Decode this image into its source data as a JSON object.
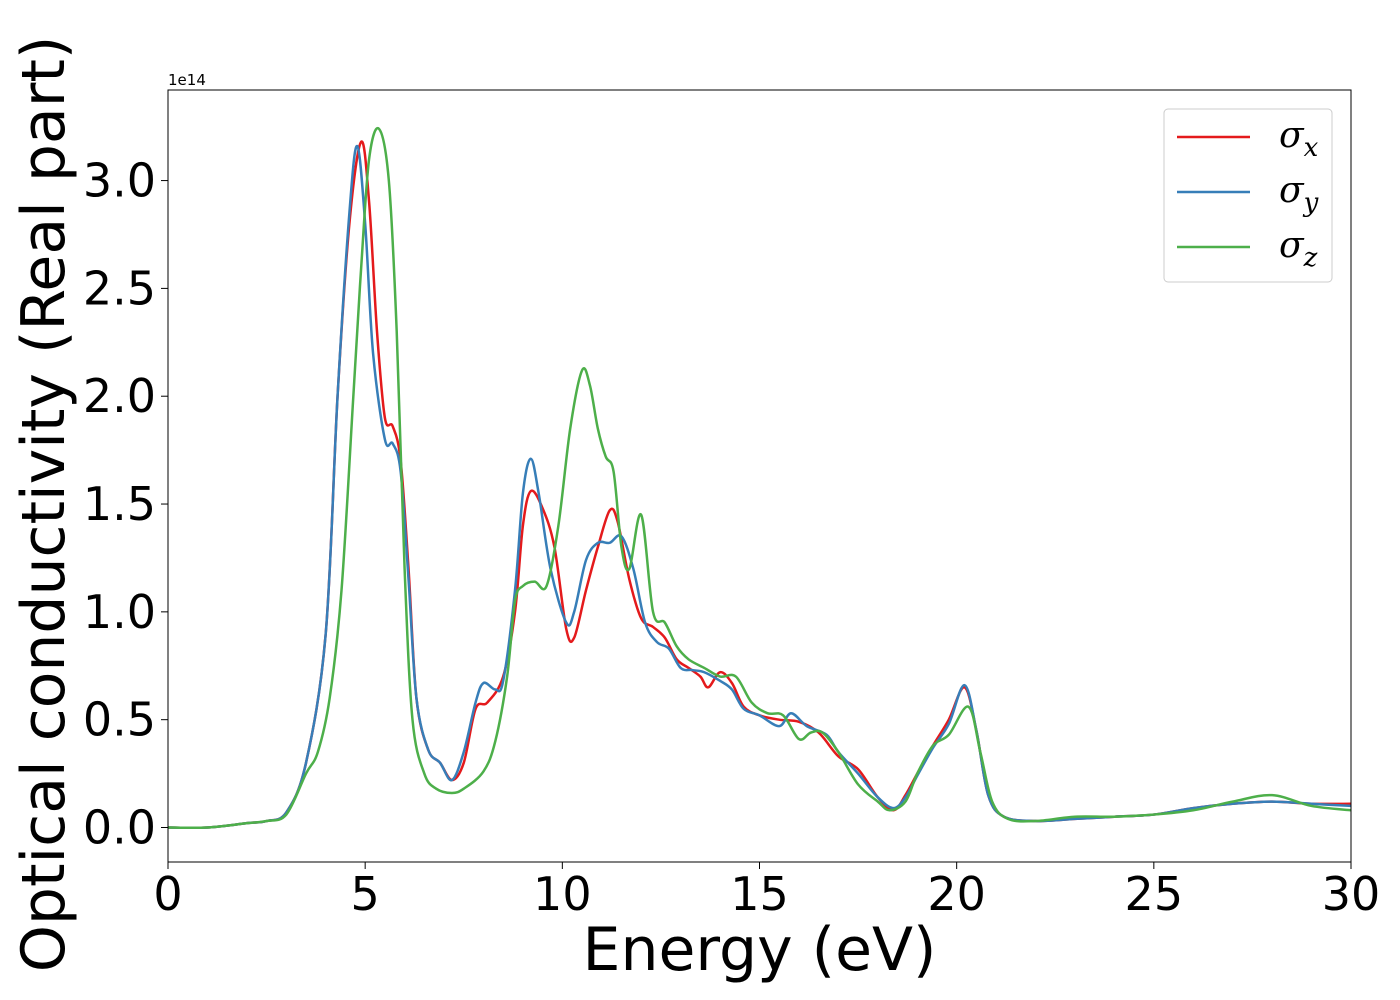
{
  "chart_data": {
    "type": "line",
    "title": "",
    "xlabel": "Energy (eV)",
    "ylabel": "Optical conductivity (Real part)",
    "y_offset_label": "1e14",
    "xlim": [
      0,
      30
    ],
    "ylim": [
      -0.16,
      3.42
    ],
    "x_ticks": [
      0,
      5,
      10,
      15,
      20,
      25,
      30
    ],
    "x_tick_labels": [
      "0",
      "5",
      "10",
      "15",
      "20",
      "25",
      "30"
    ],
    "y_ticks": [
      0.0,
      0.5,
      1.0,
      1.5,
      2.0,
      2.5,
      3.0
    ],
    "y_tick_labels": [
      "0.0",
      "0.5",
      "1.0",
      "1.5",
      "2.0",
      "2.5",
      "3.0"
    ],
    "grid": false,
    "legend_position": "top-right",
    "series": [
      {
        "name": "σx",
        "legend_symbol": "σ",
        "legend_subscript": "x",
        "color": "#e41a1c",
        "points": [
          [
            0,
            0
          ],
          [
            1,
            0
          ],
          [
            2,
            0.02
          ],
          [
            2.5,
            0.03
          ],
          [
            3,
            0.07
          ],
          [
            3.5,
            0.3
          ],
          [
            4,
            0.9
          ],
          [
            4.3,
            2.0
          ],
          [
            4.6,
            2.8
          ],
          [
            4.9,
            3.18
          ],
          [
            5.1,
            2.9
          ],
          [
            5.3,
            2.3
          ],
          [
            5.5,
            1.9
          ],
          [
            5.7,
            1.86
          ],
          [
            5.9,
            1.7
          ],
          [
            6.1,
            1.2
          ],
          [
            6.3,
            0.6
          ],
          [
            6.6,
            0.36
          ],
          [
            6.9,
            0.3
          ],
          [
            7.2,
            0.22
          ],
          [
            7.5,
            0.3
          ],
          [
            7.8,
            0.55
          ],
          [
            8.1,
            0.58
          ],
          [
            8.5,
            0.7
          ],
          [
            8.8,
            1.0
          ],
          [
            9.0,
            1.4
          ],
          [
            9.2,
            1.56
          ],
          [
            9.5,
            1.48
          ],
          [
            9.8,
            1.3
          ],
          [
            10.1,
            0.92
          ],
          [
            10.3,
            0.88
          ],
          [
            10.6,
            1.1
          ],
          [
            10.9,
            1.3
          ],
          [
            11.2,
            1.47
          ],
          [
            11.4,
            1.42
          ],
          [
            11.7,
            1.15
          ],
          [
            12.0,
            0.97
          ],
          [
            12.3,
            0.93
          ],
          [
            12.6,
            0.88
          ],
          [
            12.9,
            0.78
          ],
          [
            13.2,
            0.74
          ],
          [
            13.5,
            0.7
          ],
          [
            13.7,
            0.65
          ],
          [
            14.0,
            0.72
          ],
          [
            14.3,
            0.67
          ],
          [
            14.6,
            0.56
          ],
          [
            15.0,
            0.52
          ],
          [
            15.5,
            0.5
          ],
          [
            16.0,
            0.49
          ],
          [
            16.5,
            0.44
          ],
          [
            17.0,
            0.33
          ],
          [
            17.5,
            0.27
          ],
          [
            18.0,
            0.14
          ],
          [
            18.4,
            0.08
          ],
          [
            18.7,
            0.15
          ],
          [
            19.0,
            0.25
          ],
          [
            19.4,
            0.38
          ],
          [
            19.8,
            0.5
          ],
          [
            20.2,
            0.65
          ],
          [
            20.5,
            0.45
          ],
          [
            20.8,
            0.15
          ],
          [
            21.2,
            0.05
          ],
          [
            22,
            0.03
          ],
          [
            23,
            0.04
          ],
          [
            24,
            0.05
          ],
          [
            25,
            0.06
          ],
          [
            26,
            0.09
          ],
          [
            27,
            0.11
          ],
          [
            28,
            0.12
          ],
          [
            29,
            0.11
          ],
          [
            30,
            0.11
          ]
        ]
      },
      {
        "name": "σy",
        "legend_symbol": "σ",
        "legend_subscript": "y",
        "color": "#377eb8",
        "points": [
          [
            0,
            0
          ],
          [
            1,
            0
          ],
          [
            2,
            0.02
          ],
          [
            2.5,
            0.03
          ],
          [
            3,
            0.07
          ],
          [
            3.5,
            0.3
          ],
          [
            4,
            0.9
          ],
          [
            4.3,
            2.0
          ],
          [
            4.6,
            2.85
          ],
          [
            4.8,
            3.16
          ],
          [
            5.0,
            2.8
          ],
          [
            5.2,
            2.2
          ],
          [
            5.5,
            1.8
          ],
          [
            5.7,
            1.78
          ],
          [
            5.9,
            1.65
          ],
          [
            6.1,
            1.15
          ],
          [
            6.3,
            0.6
          ],
          [
            6.6,
            0.36
          ],
          [
            6.9,
            0.3
          ],
          [
            7.2,
            0.22
          ],
          [
            7.5,
            0.35
          ],
          [
            7.8,
            0.58
          ],
          [
            8.0,
            0.67
          ],
          [
            8.3,
            0.64
          ],
          [
            8.5,
            0.68
          ],
          [
            8.8,
            1.1
          ],
          [
            9.0,
            1.55
          ],
          [
            9.2,
            1.71
          ],
          [
            9.4,
            1.55
          ],
          [
            9.7,
            1.2
          ],
          [
            10.1,
            0.95
          ],
          [
            10.3,
            1.0
          ],
          [
            10.6,
            1.24
          ],
          [
            10.9,
            1.32
          ],
          [
            11.2,
            1.32
          ],
          [
            11.5,
            1.35
          ],
          [
            11.8,
            1.2
          ],
          [
            12.1,
            0.95
          ],
          [
            12.4,
            0.86
          ],
          [
            12.7,
            0.83
          ],
          [
            13.0,
            0.74
          ],
          [
            13.3,
            0.73
          ],
          [
            13.6,
            0.72
          ],
          [
            14.0,
            0.68
          ],
          [
            14.3,
            0.64
          ],
          [
            14.6,
            0.55
          ],
          [
            15.0,
            0.52
          ],
          [
            15.5,
            0.47
          ],
          [
            15.8,
            0.53
          ],
          [
            16.2,
            0.47
          ],
          [
            16.7,
            0.43
          ],
          [
            17.0,
            0.35
          ],
          [
            17.5,
            0.25
          ],
          [
            18.0,
            0.14
          ],
          [
            18.4,
            0.09
          ],
          [
            18.7,
            0.14
          ],
          [
            19.0,
            0.24
          ],
          [
            19.4,
            0.37
          ],
          [
            19.8,
            0.48
          ],
          [
            20.2,
            0.66
          ],
          [
            20.5,
            0.45
          ],
          [
            20.8,
            0.15
          ],
          [
            21.2,
            0.05
          ],
          [
            22,
            0.03
          ],
          [
            23,
            0.04
          ],
          [
            24,
            0.05
          ],
          [
            25,
            0.06
          ],
          [
            26,
            0.09
          ],
          [
            27,
            0.11
          ],
          [
            28,
            0.12
          ],
          [
            29,
            0.11
          ],
          [
            30,
            0.1
          ]
        ]
      },
      {
        "name": "σz",
        "legend_symbol": "σ",
        "legend_subscript": "z",
        "color": "#4daf4a",
        "points": [
          [
            0,
            0
          ],
          [
            1,
            0
          ],
          [
            2,
            0.02
          ],
          [
            2.5,
            0.03
          ],
          [
            3,
            0.06
          ],
          [
            3.5,
            0.25
          ],
          [
            3.8,
            0.35
          ],
          [
            4.1,
            0.6
          ],
          [
            4.4,
            1.1
          ],
          [
            4.7,
            2.0
          ],
          [
            4.9,
            2.6
          ],
          [
            5.1,
            3.1
          ],
          [
            5.35,
            3.24
          ],
          [
            5.6,
            3.0
          ],
          [
            5.8,
            2.3
          ],
          [
            6.0,
            1.2
          ],
          [
            6.2,
            0.5
          ],
          [
            6.5,
            0.25
          ],
          [
            6.8,
            0.18
          ],
          [
            7.2,
            0.16
          ],
          [
            7.5,
            0.18
          ],
          [
            8.0,
            0.26
          ],
          [
            8.3,
            0.4
          ],
          [
            8.6,
            0.7
          ],
          [
            8.8,
            1.05
          ],
          [
            9.0,
            1.12
          ],
          [
            9.3,
            1.14
          ],
          [
            9.6,
            1.12
          ],
          [
            9.9,
            1.4
          ],
          [
            10.2,
            1.85
          ],
          [
            10.5,
            2.12
          ],
          [
            10.7,
            2.05
          ],
          [
            10.9,
            1.85
          ],
          [
            11.1,
            1.72
          ],
          [
            11.3,
            1.65
          ],
          [
            11.5,
            1.3
          ],
          [
            11.7,
            1.2
          ],
          [
            12.0,
            1.45
          ],
          [
            12.3,
            1.0
          ],
          [
            12.6,
            0.95
          ],
          [
            12.9,
            0.84
          ],
          [
            13.2,
            0.78
          ],
          [
            13.6,
            0.74
          ],
          [
            14.0,
            0.7
          ],
          [
            14.4,
            0.7
          ],
          [
            14.8,
            0.58
          ],
          [
            15.2,
            0.53
          ],
          [
            15.6,
            0.52
          ],
          [
            16.0,
            0.41
          ],
          [
            16.3,
            0.44
          ],
          [
            16.6,
            0.44
          ],
          [
            17.0,
            0.35
          ],
          [
            17.5,
            0.2
          ],
          [
            18.0,
            0.12
          ],
          [
            18.3,
            0.08
          ],
          [
            18.7,
            0.12
          ],
          [
            19.0,
            0.25
          ],
          [
            19.4,
            0.38
          ],
          [
            19.8,
            0.43
          ],
          [
            20.3,
            0.56
          ],
          [
            20.6,
            0.35
          ],
          [
            20.9,
            0.12
          ],
          [
            21.3,
            0.04
          ],
          [
            22,
            0.03
          ],
          [
            23,
            0.05
          ],
          [
            24,
            0.05
          ],
          [
            25,
            0.06
          ],
          [
            26,
            0.08
          ],
          [
            27,
            0.12
          ],
          [
            28,
            0.15
          ],
          [
            29,
            0.1
          ],
          [
            30,
            0.08
          ]
        ]
      }
    ]
  }
}
